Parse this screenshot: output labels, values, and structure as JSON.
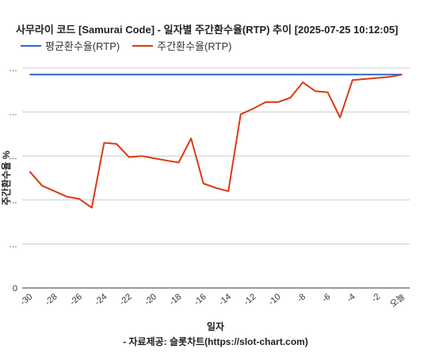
{
  "chart_data": {
    "type": "line",
    "title": "사무라이 코드 [Samurai Code] - 일자별 주간환수율(RTP) 추이 [2025-07-25 10:12:05]",
    "xlabel": "일자",
    "ylabel": "주간환수율 %",
    "x_tick_labels": [
      "-30",
      "-28",
      "-26",
      "-24",
      "-22",
      "-20",
      "-18",
      "-16",
      "-14",
      "-12",
      "-10",
      "-8",
      "-6",
      "-4",
      "-2",
      "오늘"
    ],
    "x": [
      -30,
      -29,
      -28,
      -27,
      -26,
      -25,
      -24,
      -23,
      -22,
      -21,
      -20,
      -19,
      -18,
      -17,
      -16,
      -15,
      -14,
      -13,
      -12,
      -11,
      -10,
      -9,
      -8,
      -7,
      -6,
      -5,
      -4,
      -3,
      -2,
      -1,
      0
    ],
    "xlim": [
      -30.6,
      0.6
    ],
    "ylim": [
      0,
      100
    ],
    "y_tick_values": [
      0,
      20,
      40,
      60,
      80,
      100
    ],
    "y_tick_labels": [
      "0",
      "…",
      "…",
      "…",
      "…",
      "…"
    ],
    "grid": true,
    "legend_position": "top-left",
    "series": [
      {
        "name": "평균환수율(RTP)",
        "color": "#3366cc",
        "values": [
          97,
          97,
          97,
          97,
          97,
          97,
          97,
          97,
          97,
          97,
          97,
          97,
          97,
          97,
          97,
          97,
          97,
          97,
          97,
          97,
          97,
          97,
          97,
          97,
          97,
          97,
          97,
          97,
          97,
          97,
          97
        ]
      },
      {
        "name": "주간환수율(RTP)",
        "color": "#dc3912",
        "values": [
          53,
          46.5,
          44,
          41.5,
          40.5,
          36.5,
          66,
          65.5,
          59.5,
          60,
          59,
          58,
          57,
          68,
          47.5,
          45.5,
          44,
          79,
          81.5,
          84.5,
          84.5,
          86.5,
          93.5,
          89.5,
          89,
          77.5,
          94.5,
          95,
          95.5,
          96,
          97
        ]
      }
    ]
  },
  "source_note": "- 자료제공: 슬롯차트(https://slot-chart.com)"
}
